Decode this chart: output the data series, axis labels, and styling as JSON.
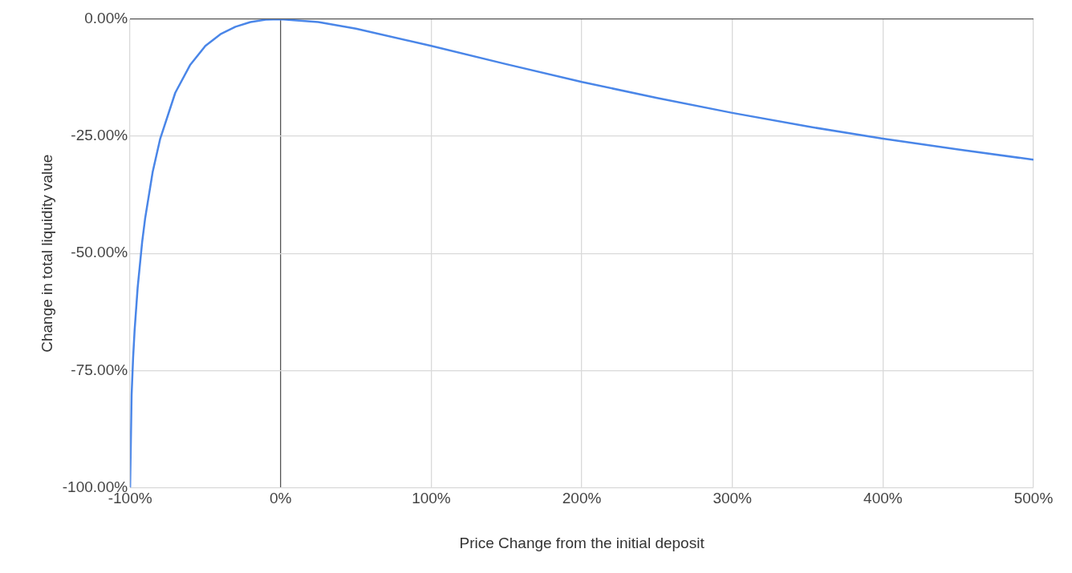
{
  "chart_data": {
    "type": "line",
    "xlabel": "Price Change from the initial deposit",
    "ylabel": "Change in total liquidity value",
    "x": [
      -100,
      -99,
      -98,
      -97,
      -95,
      -92,
      -90,
      -85,
      -80,
      -70,
      -60,
      -50,
      -40,
      -30,
      -20,
      -10,
      0,
      25,
      50,
      100,
      150,
      200,
      250,
      300,
      350,
      400,
      450,
      500
    ],
    "series": [
      {
        "color": "#4a86e8",
        "values": [
          -100,
          -80.2,
          -72.3,
          -66.4,
          -57.4,
          -47.6,
          -42.5,
          -32.6,
          -25.5,
          -15.7,
          -9.7,
          -5.7,
          -3.2,
          -1.6,
          -0.6,
          -0.1,
          0,
          -0.6,
          -2.0,
          -5.7,
          -9.6,
          -13.4,
          -16.8,
          -20.0,
          -22.9,
          -25.5,
          -27.8,
          -30.0
        ]
      }
    ],
    "xlim": [
      -100,
      500
    ],
    "xticks": [
      {
        "value": -100,
        "label": "-100%"
      },
      {
        "value": 0,
        "label": "0%"
      },
      {
        "value": 100,
        "label": "100%"
      },
      {
        "value": 200,
        "label": "200%"
      },
      {
        "value": 300,
        "label": "300%"
      },
      {
        "value": 400,
        "label": "400%"
      },
      {
        "value": 500,
        "label": "500%"
      }
    ],
    "ylim": [
      -100,
      0
    ],
    "yticks": [
      {
        "value": -100,
        "label": "-100.00%"
      },
      {
        "value": -75,
        "label": "-75.00%"
      },
      {
        "value": -50,
        "label": "-50.00%"
      },
      {
        "value": -25,
        "label": "-25.00%"
      },
      {
        "value": 0,
        "label": "0.00%"
      }
    ],
    "grid": true,
    "legend": false,
    "marker": "none",
    "line_style": "solid"
  }
}
